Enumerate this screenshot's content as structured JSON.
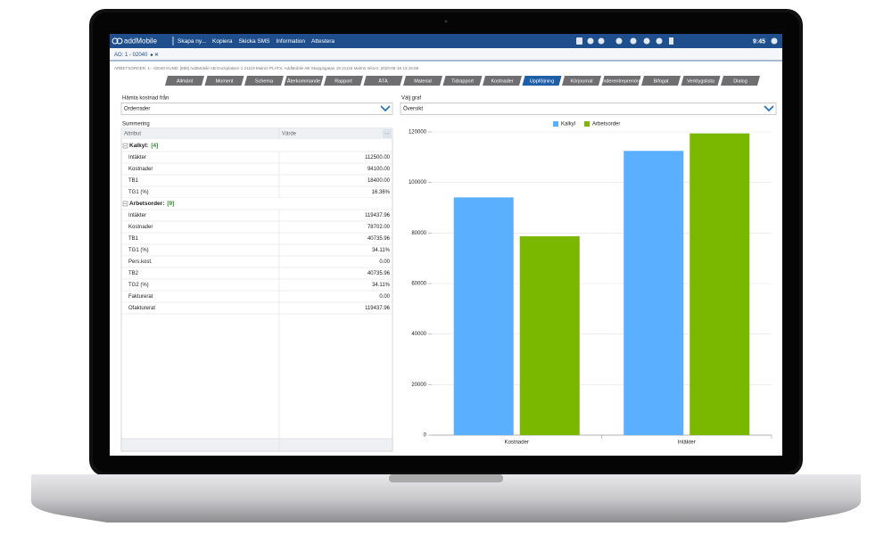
{
  "app": {
    "brand": "addMobile",
    "menu": [
      "Skapa ny...",
      "Kopiera",
      "Skicka SMS",
      "Information",
      "Attestera"
    ],
    "time": "9:45"
  },
  "document_tab": "AO: 1 - 02040",
  "info": "ARBETSORDER: 1 - 02040 KUND: [999] AddMobile AB Dockplatsen 1 21119 Malmö PLATS: AddMobile AB Skeppsgatan 19 21119 Malmö Inkom: 2020-05-18 13:16:58",
  "tabs": [
    "Allmänt",
    "Moment",
    "Schema",
    "Återkommande",
    "Rapport",
    "ÄTA",
    "Material",
    "Tidrapport",
    "Kostnader",
    "Uppföljning",
    "Körjournal",
    "Underentreprenörer",
    "Bifogat",
    "Verktygslista",
    "Dialog"
  ],
  "active_tab": 9,
  "left": {
    "fetch_label": "Hämta kostnad från",
    "fetch_value": "Orderrader",
    "summary_label": "Summering",
    "columns": [
      "Attribut",
      "Värde"
    ],
    "groups": [
      {
        "name": "Kalkyl:",
        "count": "[4]",
        "rows": [
          [
            "Intäkter",
            "112500.00"
          ],
          [
            "Kostnader",
            "94100.00"
          ],
          [
            "TB1",
            "18400.00"
          ],
          [
            "TG1 (%)",
            "16.36%"
          ]
        ]
      },
      {
        "name": "Arbetsorder:",
        "count": "[9]",
        "rows": [
          [
            "Intäkter",
            "119437.96"
          ],
          [
            "Kostnader",
            "78702.00"
          ],
          [
            "TB1",
            "40735.96"
          ],
          [
            "TG1 (%)",
            "34.11%"
          ],
          [
            "Pers.kost.",
            "0.00"
          ],
          [
            "TB2",
            "40735.96"
          ],
          [
            "TG2 (%)",
            "34.11%"
          ],
          [
            "Fakturerat",
            "0.00"
          ],
          [
            "Ofakturerat",
            "119437.96"
          ]
        ]
      }
    ]
  },
  "right": {
    "chart_label": "Välj graf",
    "chart_select": "Översikt"
  },
  "chart_data": {
    "type": "bar",
    "categories": [
      "Kostnader",
      "Intäkter"
    ],
    "series": [
      {
        "name": "Kalkyl",
        "color": "#5aafff",
        "values": [
          94100,
          112500
        ]
      },
      {
        "name": "Arbetsorder",
        "color": "#7ab800",
        "values": [
          78702,
          119437.96
        ]
      }
    ],
    "ylim": [
      0,
      120000
    ],
    "yticks": [
      0,
      20000,
      40000,
      60000,
      80000,
      100000,
      120000
    ],
    "grid": true,
    "legend": "top"
  }
}
